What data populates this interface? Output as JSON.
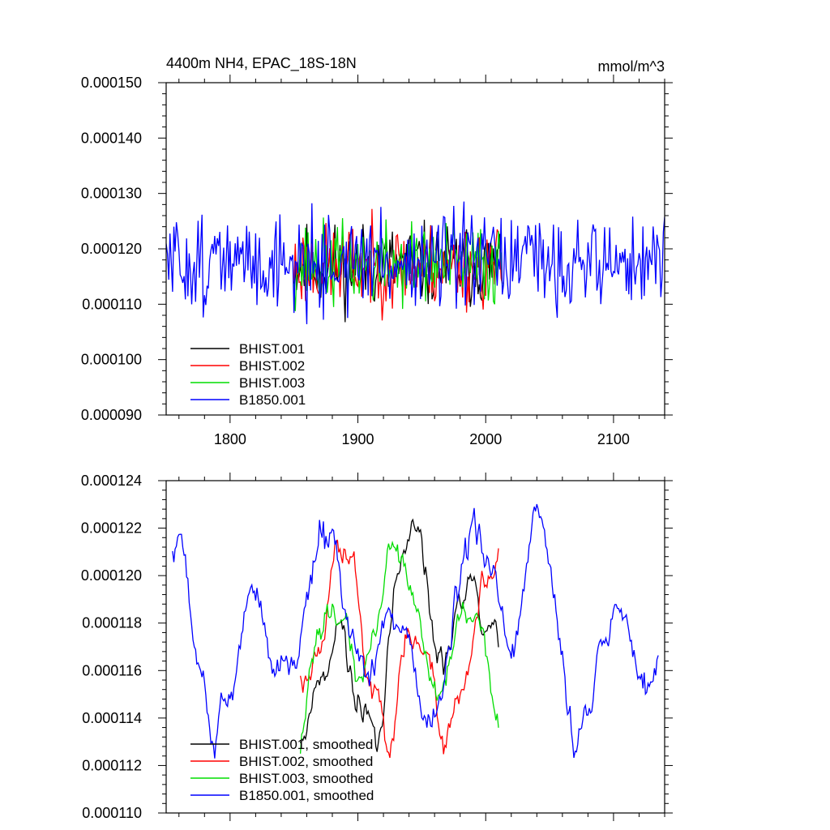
{
  "chart_data": [
    {
      "type": "line",
      "title": "4400m NH4, EPAC_18S-18N",
      "units": "mmol/m^3",
      "xlim": [
        1750,
        2140
      ],
      "ylim": [
        9e-05,
        0.00015
      ],
      "xticks": [
        1800,
        1900,
        2000,
        2100
      ],
      "xtick_labels": [
        "1800",
        "1900",
        "2000",
        "2100"
      ],
      "yticks": [
        9e-05,
        0.0001,
        0.00011,
        0.00012,
        0.00013,
        0.00014,
        0.00015
      ],
      "ytick_labels": [
        "0.000090",
        "0.000100",
        "0.000110",
        "0.000120",
        "0.000130",
        "0.000140",
        "0.000150"
      ],
      "legend_position": "bottom-left",
      "series": [
        {
          "name": "BHIST.001",
          "color": "#000000",
          "x_start": 1850,
          "x_end": 2013,
          "seed": 11,
          "mean": 0.000117,
          "amp": 6.5e-06,
          "smooth": 0
        },
        {
          "name": "BHIST.002",
          "color": "#ff0000",
          "x_start": 1850,
          "x_end": 2013,
          "seed": 23,
          "mean": 0.0001168,
          "amp": 6.5e-06,
          "smooth": 0
        },
        {
          "name": "BHIST.003",
          "color": "#00dd00",
          "x_start": 1850,
          "x_end": 2013,
          "seed": 37,
          "mean": 0.0001172,
          "amp": 6.5e-06,
          "smooth": 0
        },
        {
          "name": "B1850.001",
          "color": "#0000ff",
          "x_start": 1750,
          "x_end": 2140,
          "seed": 51,
          "mean": 0.0001175,
          "amp": 7.5e-06,
          "smooth": 0
        }
      ]
    },
    {
      "type": "line",
      "xlim": [
        1750,
        2140
      ],
      "ylim": [
        0.00011,
        0.000124
      ],
      "xticks": [
        1800,
        1900,
        2000,
        2100
      ],
      "yticks": [
        0.00011,
        0.000112,
        0.000114,
        0.000116,
        0.000118,
        0.00012,
        0.000122,
        0.000124
      ],
      "ytick_labels": [
        "0.000110",
        "0.000112",
        "0.000114",
        "0.000116",
        "0.000118",
        "0.000120",
        "0.000122",
        "0.000124"
      ],
      "legend_position": "bottom-left",
      "series": [
        {
          "name": "BHIST.001, smoothed",
          "color": "#000000",
          "x_start": 1855,
          "x_end": 2010,
          "seed": 11,
          "mean": 0.0001172,
          "amp": 2.8e-06,
          "smooth": 1
        },
        {
          "name": "BHIST.002, smoothed",
          "color": "#ff0000",
          "x_start": 1855,
          "x_end": 2010,
          "seed": 23,
          "mean": 0.000117,
          "amp": 2.6e-06,
          "smooth": 1
        },
        {
          "name": "BHIST.003, smoothed",
          "color": "#00dd00",
          "x_start": 1855,
          "x_end": 2010,
          "seed": 37,
          "mean": 0.0001173,
          "amp": 2.4e-06,
          "smooth": 1
        },
        {
          "name": "B1850.001, smoothed",
          "color": "#0000ff",
          "x_start": 1755,
          "x_end": 2135,
          "seed": 51,
          "mean": 0.0001178,
          "amp": 2.8e-06,
          "smooth": 1
        }
      ]
    }
  ]
}
